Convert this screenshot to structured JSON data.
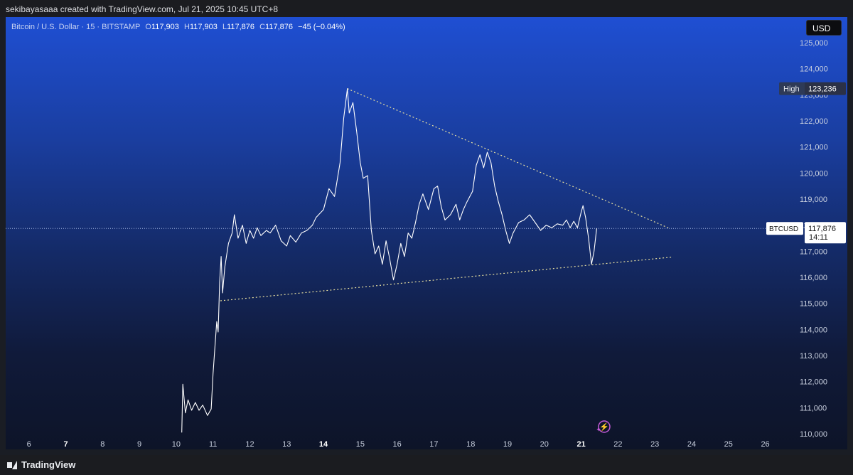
{
  "header": {
    "byline": "sekibayasaaa created with TradingView.com, Jul 21, 2025 10:45 UTC+8"
  },
  "legend": {
    "symbol_text": "Bitcoin / U.S. Dollar · 15 · BITSTAMP",
    "open_label": "O",
    "open": "117,903",
    "high_label": "H",
    "high": "117,903",
    "low_label": "L",
    "low": "117,876",
    "close_label": "C",
    "close": "117,876",
    "change": "−45 (−0.04%)"
  },
  "currency_button": "USD",
  "high_marker": {
    "label": "High",
    "value": "123,236"
  },
  "price_tag": {
    "symbol": "BTCUSD",
    "price": "117,876",
    "countdown": "14:11"
  },
  "footer": {
    "brand": "TradingView"
  },
  "colors": {
    "line": "#ffffff",
    "trendline": "#e8e0a0",
    "price_line": "#9fb2e0",
    "alert_icon": "#c45bd9"
  },
  "chart_data": {
    "type": "line",
    "title": "",
    "xlabel": "",
    "ylabel": "",
    "x_ticks": [
      {
        "label": "6",
        "x": 6,
        "bold": false
      },
      {
        "label": "7",
        "x": 7,
        "bold": true
      },
      {
        "label": "8",
        "x": 8,
        "bold": false
      },
      {
        "label": "9",
        "x": 9,
        "bold": false
      },
      {
        "label": "10",
        "x": 10,
        "bold": false
      },
      {
        "label": "11",
        "x": 11,
        "bold": false
      },
      {
        "label": "12",
        "x": 12,
        "bold": false
      },
      {
        "label": "13",
        "x": 13,
        "bold": false
      },
      {
        "label": "14",
        "x": 14,
        "bold": true
      },
      {
        "label": "15",
        "x": 15,
        "bold": false
      },
      {
        "label": "16",
        "x": 16,
        "bold": false
      },
      {
        "label": "17",
        "x": 17,
        "bold": false
      },
      {
        "label": "18",
        "x": 18,
        "bold": false
      },
      {
        "label": "19",
        "x": 19,
        "bold": false
      },
      {
        "label": "20",
        "x": 20,
        "bold": false
      },
      {
        "label": "21",
        "x": 21,
        "bold": true
      },
      {
        "label": "22",
        "x": 22,
        "bold": false
      },
      {
        "label": "23",
        "x": 23,
        "bold": false
      },
      {
        "label": "24",
        "x": 24,
        "bold": false
      },
      {
        "label": "25",
        "x": 25,
        "bold": false
      },
      {
        "label": "26",
        "x": 26,
        "bold": false
      }
    ],
    "y_ticks": [
      "110,000",
      "111,000",
      "112,000",
      "113,000",
      "114,000",
      "115,000",
      "116,000",
      "117,000",
      "118,000",
      "119,000",
      "120,000",
      "121,000",
      "122,000",
      "123,000",
      "124,000",
      "125,000"
    ],
    "ylim": [
      110000,
      125000
    ],
    "xlim": [
      5.6,
      26.8
    ],
    "series": [
      {
        "values": [
          [
            10.15,
            110050
          ],
          [
            10.18,
            111900
          ],
          [
            10.25,
            110800
          ],
          [
            10.32,
            111300
          ],
          [
            10.42,
            110900
          ],
          [
            10.52,
            111200
          ],
          [
            10.62,
            110900
          ],
          [
            10.72,
            111100
          ],
          [
            10.85,
            110700
          ],
          [
            10.95,
            110950
          ],
          [
            11.0,
            112300
          ],
          [
            11.06,
            113500
          ],
          [
            11.1,
            114300
          ],
          [
            11.14,
            113900
          ],
          [
            11.18,
            115800
          ],
          [
            11.22,
            116800
          ],
          [
            11.26,
            115400
          ],
          [
            11.32,
            116400
          ],
          [
            11.42,
            117300
          ],
          [
            11.52,
            117700
          ],
          [
            11.58,
            118400
          ],
          [
            11.68,
            117500
          ],
          [
            11.8,
            118000
          ],
          [
            11.9,
            117300
          ],
          [
            12.0,
            117800
          ],
          [
            12.1,
            117500
          ],
          [
            12.2,
            117900
          ],
          [
            12.3,
            117600
          ],
          [
            12.45,
            117800
          ],
          [
            12.55,
            117700
          ],
          [
            12.7,
            118000
          ],
          [
            12.85,
            117400
          ],
          [
            13.0,
            117200
          ],
          [
            13.1,
            117600
          ],
          [
            13.25,
            117350
          ],
          [
            13.4,
            117700
          ],
          [
            13.55,
            117800
          ],
          [
            13.7,
            118000
          ],
          [
            13.8,
            118300
          ],
          [
            14.0,
            118600
          ],
          [
            14.15,
            119400
          ],
          [
            14.3,
            119100
          ],
          [
            14.45,
            120400
          ],
          [
            14.55,
            122100
          ],
          [
            14.65,
            123236
          ],
          [
            14.7,
            122300
          ],
          [
            14.8,
            122700
          ],
          [
            14.9,
            121600
          ],
          [
            15.0,
            120400
          ],
          [
            15.08,
            119800
          ],
          [
            15.2,
            119900
          ],
          [
            15.3,
            117800
          ],
          [
            15.4,
            116900
          ],
          [
            15.5,
            117200
          ],
          [
            15.6,
            116500
          ],
          [
            15.7,
            117400
          ],
          [
            15.8,
            116700
          ],
          [
            15.9,
            115900
          ],
          [
            16.0,
            116500
          ],
          [
            16.1,
            117300
          ],
          [
            16.2,
            116800
          ],
          [
            16.3,
            117700
          ],
          [
            16.4,
            117500
          ],
          [
            16.5,
            118100
          ],
          [
            16.6,
            118800
          ],
          [
            16.7,
            119200
          ],
          [
            16.85,
            118600
          ],
          [
            17.0,
            119400
          ],
          [
            17.1,
            119500
          ],
          [
            17.2,
            118700
          ],
          [
            17.3,
            118200
          ],
          [
            17.45,
            118400
          ],
          [
            17.6,
            118800
          ],
          [
            17.7,
            118200
          ],
          [
            17.8,
            118600
          ],
          [
            17.9,
            118900
          ],
          [
            18.05,
            119300
          ],
          [
            18.15,
            120300
          ],
          [
            18.25,
            120700
          ],
          [
            18.35,
            120200
          ],
          [
            18.45,
            120800
          ],
          [
            18.55,
            120400
          ],
          [
            18.65,
            119500
          ],
          [
            18.75,
            118900
          ],
          [
            18.85,
            118400
          ],
          [
            18.95,
            117800
          ],
          [
            19.05,
            117300
          ],
          [
            19.15,
            117700
          ],
          [
            19.3,
            118100
          ],
          [
            19.45,
            118200
          ],
          [
            19.6,
            118400
          ],
          [
            19.75,
            118100
          ],
          [
            19.9,
            117800
          ],
          [
            20.05,
            118000
          ],
          [
            20.2,
            117900
          ],
          [
            20.35,
            118050
          ],
          [
            20.5,
            118000
          ],
          [
            20.6,
            118200
          ],
          [
            20.7,
            117900
          ],
          [
            20.8,
            118150
          ],
          [
            20.9,
            117900
          ],
          [
            21.0,
            118500
          ],
          [
            21.05,
            118750
          ],
          [
            21.12,
            118300
          ],
          [
            21.2,
            117500
          ],
          [
            21.28,
            116500
          ],
          [
            21.35,
            117000
          ],
          [
            21.42,
            117876
          ]
        ]
      }
    ],
    "trendlines": [
      {
        "name": "upper",
        "from": [
          14.65,
          123236
        ],
        "to": [
          23.4,
          117876
        ]
      },
      {
        "name": "lower",
        "from": [
          11.2,
          115100
        ],
        "to": [
          23.5,
          116780
        ]
      }
    ],
    "last_price": 117876,
    "high_value": 123236
  }
}
